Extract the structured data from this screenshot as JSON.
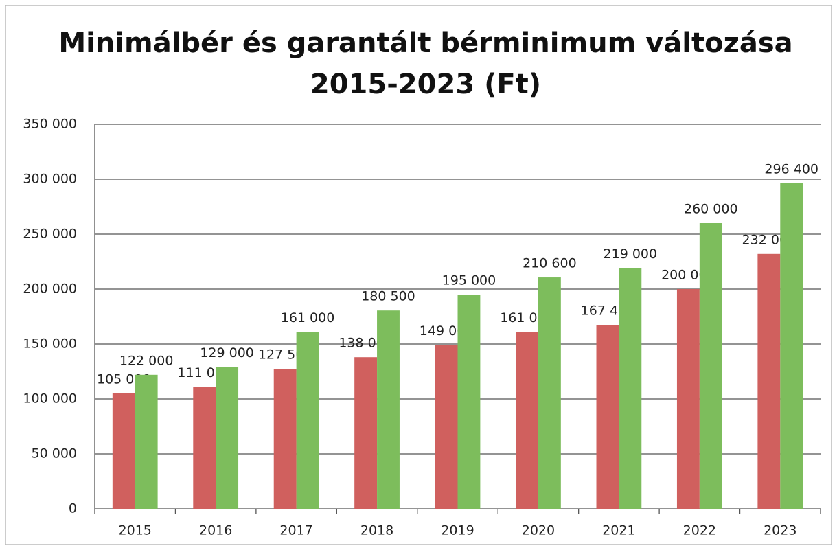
{
  "chart_data": {
    "type": "bar",
    "title": [
      "Minimálbér és garantált bérminimum változása",
      "2015-2023 (Ft)"
    ],
    "categories": [
      "2015",
      "2016",
      "2017",
      "2018",
      "2019",
      "2020",
      "2021",
      "2022",
      "2023"
    ],
    "series": [
      {
        "color": "#d0605e",
        "values": [
          105000,
          111000,
          127500,
          138000,
          149000,
          161000,
          167400,
          200000,
          232000
        ],
        "value_labels": [
          "105 000",
          "111 000",
          "127 500",
          "138 000",
          "149 000",
          "161 000",
          "167 400",
          "200 000",
          "232 000"
        ]
      },
      {
        "color": "#7dbd5c",
        "values": [
          122000,
          129000,
          161000,
          180500,
          195000,
          210600,
          219000,
          260000,
          296400
        ],
        "value_labels": [
          "122 000",
          "129 000",
          "161 000",
          "180 500",
          "195 000",
          "210 600",
          "219 000",
          "260 000",
          "296 400"
        ]
      }
    ],
    "ylim": [
      0,
      350000
    ],
    "yticks": [
      0,
      {
        "value": 50000,
        "label": "50 000"
      },
      {
        "value": 100000,
        "label": "100 000"
      },
      {
        "value": 150000,
        "label": "150 000"
      },
      {
        "value": 200000,
        "label": "200 000"
      },
      {
        "value": 250000,
        "label": "250 000"
      },
      {
        "value": 300000,
        "label": "300 000"
      },
      {
        "value": 350000,
        "label": "350 000"
      }
    ],
    "grid": true
  }
}
